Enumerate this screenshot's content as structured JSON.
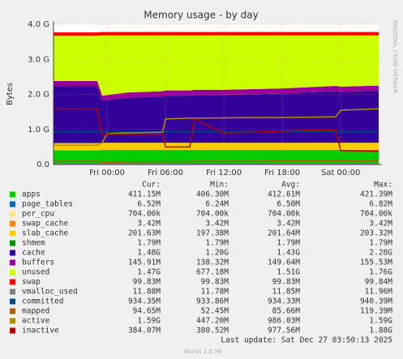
{
  "chart_data": {
    "type": "area",
    "title": "Memory usage - by day",
    "ylabel": "Bytes",
    "side_label": "RRDTOOL / TOBI OETIKER",
    "footer": "Last update: Sat Dec 27 03:50:13 2025",
    "version": "Munin 2.0.76",
    "columns": [
      "Cur:",
      "Min:",
      "Avg:",
      "Max:"
    ],
    "grid": true,
    "xlim": [
      -5.5,
      27.9
    ],
    "xticks": [
      {
        "value": 0,
        "label": "Fri 00:00"
      },
      {
        "value": 6,
        "label": "Fri 06:00"
      },
      {
        "value": 12,
        "label": "Fri 12:00"
      },
      {
        "value": 18,
        "label": "Fri 18:00"
      },
      {
        "value": 24,
        "label": "Sat 00:00"
      }
    ],
    "ylim": [
      0,
      4
    ],
    "yticks": [
      {
        "value": 0,
        "label": "0.0"
      },
      {
        "value": 1,
        "label": "1.0 G"
      },
      {
        "value": 2,
        "label": "2.0 G"
      },
      {
        "value": 3,
        "label": "3.0 G"
      },
      {
        "value": 4,
        "label": "4.0 G"
      }
    ],
    "x": [
      -5.5,
      -1,
      -0.5,
      0,
      2,
      5.7,
      6,
      8.5,
      9,
      12,
      15,
      18,
      21,
      23.5,
      24,
      27.9
    ],
    "series": [
      {
        "name": "apps",
        "color": "#00cc00",
        "style": "stack",
        "cur": "411.15M",
        "min": "406.30M",
        "avg": "412.61M",
        "max": "421.39M",
        "values": [
          0.4,
          0.4,
          0.41,
          0.41,
          0.41,
          0.41,
          0.41,
          0.41,
          0.41,
          0.41,
          0.41,
          0.41,
          0.41,
          0.41,
          0.41,
          0.41
        ]
      },
      {
        "name": "page_tables",
        "color": "#0066b3",
        "style": "stack",
        "cur": "6.52M",
        "min": "6.24M",
        "avg": "6.50M",
        "max": "6.82M",
        "values": [
          0.006,
          0.006,
          0.006,
          0.006,
          0.006,
          0.006,
          0.006,
          0.006,
          0.006,
          0.006,
          0.006,
          0.006,
          0.006,
          0.006,
          0.006,
          0.006
        ]
      },
      {
        "name": "per_cpu",
        "color": "#ffe680",
        "style": "stack",
        "cur": "704.00k",
        "min": "704.00k",
        "avg": "704.00k",
        "max": "704.00k",
        "values": [
          0.0007,
          0.0007,
          0.0007,
          0.0007,
          0.0007,
          0.0007,
          0.0007,
          0.0007,
          0.0007,
          0.0007,
          0.0007,
          0.0007,
          0.0007,
          0.0007,
          0.0007,
          0.0007
        ]
      },
      {
        "name": "swap_cache",
        "color": "#ff8000",
        "style": "stack",
        "cur": "3.42M",
        "min": "3.42M",
        "avg": "3.42M",
        "max": "3.42M",
        "values": [
          0.003,
          0.003,
          0.003,
          0.003,
          0.003,
          0.003,
          0.003,
          0.003,
          0.003,
          0.003,
          0.003,
          0.003,
          0.003,
          0.003,
          0.003,
          0.003
        ]
      },
      {
        "name": "slab_cache",
        "color": "#ffcc00",
        "style": "stack",
        "cur": "201.63M",
        "min": "197.38M",
        "avg": "201.64M",
        "max": "203.32M",
        "values": [
          0.2,
          0.2,
          0.2,
          0.2,
          0.2,
          0.2,
          0.2,
          0.2,
          0.2,
          0.2,
          0.2,
          0.2,
          0.2,
          0.2,
          0.2,
          0.2
        ]
      },
      {
        "name": "shmem",
        "color": "#008f00",
        "style": "stack",
        "cur": "1.79M",
        "min": "1.79M",
        "avg": "1.79M",
        "max": "1.79M",
        "values": [
          0.002,
          0.002,
          0.002,
          0.002,
          0.002,
          0.002,
          0.002,
          0.002,
          0.002,
          0.002,
          0.002,
          0.002,
          0.002,
          0.002,
          0.002,
          0.002
        ]
      },
      {
        "name": "cache",
        "color": "#330099",
        "style": "stack",
        "cur": "1.48G",
        "min": "1.20G",
        "avg": "1.43G",
        "max": "2.28G",
        "values": [
          1.62,
          1.62,
          1.2,
          1.22,
          1.28,
          1.32,
          1.34,
          1.34,
          1.36,
          1.36,
          1.38,
          1.4,
          1.44,
          1.47,
          1.45,
          1.48
        ]
      },
      {
        "name": "buffers",
        "color": "#990099",
        "style": "stack",
        "cur": "145.91M",
        "min": "138.32M",
        "avg": "149.64M",
        "max": "155.53M",
        "values": [
          0.15,
          0.15,
          0.14,
          0.14,
          0.15,
          0.15,
          0.15,
          0.15,
          0.15,
          0.15,
          0.15,
          0.15,
          0.15,
          0.15,
          0.15,
          0.15
        ]
      },
      {
        "name": "unused",
        "color": "#ccff00",
        "style": "stack",
        "cur": "1.47G",
        "min": "677.18M",
        "avg": "1.51G",
        "max": "1.76G",
        "values": [
          1.29,
          1.29,
          1.72,
          1.7,
          1.63,
          1.59,
          1.57,
          1.57,
          1.55,
          1.55,
          1.53,
          1.51,
          1.47,
          1.44,
          1.46,
          1.43
        ]
      },
      {
        "name": "swap",
        "color": "#ff0000",
        "style": "stack",
        "cur": "99.83M",
        "min": "99.83M",
        "avg": "99.83M",
        "max": "99.84M",
        "values": [
          0.1,
          0.1,
          0.1,
          0.1,
          0.1,
          0.1,
          0.1,
          0.1,
          0.1,
          0.1,
          0.1,
          0.1,
          0.1,
          0.1,
          0.1,
          0.1
        ]
      },
      {
        "name": "vmalloc_used",
        "color": "#808080",
        "style": "line",
        "cur": "11.88M",
        "min": "11.78M",
        "avg": "11.85M",
        "max": "11.96M",
        "values": [
          0.012,
          0.012,
          0.012,
          0.012,
          0.012,
          0.012,
          0.012,
          0.012,
          0.012,
          0.012,
          0.012,
          0.012,
          0.012,
          0.012,
          0.012,
          0.012
        ]
      },
      {
        "name": "committed",
        "color": "#00487d",
        "style": "line",
        "cur": "934.35M",
        "min": "933.86M",
        "avg": "934.33M",
        "max": "940.39M",
        "values": [
          0.93,
          0.93,
          0.93,
          0.93,
          0.93,
          0.93,
          0.93,
          0.93,
          0.93,
          0.93,
          0.93,
          0.93,
          0.93,
          0.93,
          0.93,
          0.93
        ]
      },
      {
        "name": "mapped",
        "color": "#b35a00",
        "style": "line",
        "cur": "94.65M",
        "min": "52.45M",
        "avg": "85.66M",
        "max": "119.39M",
        "values": [
          0.09,
          0.09,
          0.06,
          0.06,
          0.07,
          0.08,
          0.08,
          0.08,
          0.09,
          0.09,
          0.09,
          0.1,
          0.1,
          0.1,
          0.1,
          0.095
        ]
      },
      {
        "name": "active",
        "color": "#b38f00",
        "style": "line",
        "cur": "1.59G",
        "min": "447.20M",
        "avg": "986.03M",
        "max": "1.59G",
        "values": [
          0.55,
          0.55,
          0.62,
          0.88,
          0.9,
          0.92,
          1.3,
          1.32,
          1.32,
          1.33,
          1.34,
          1.34,
          1.35,
          1.36,
          1.55,
          1.59
        ]
      },
      {
        "name": "inactive",
        "color": "#b30000",
        "style": "line",
        "cur": "384.07M",
        "min": "380.52M",
        "avg": "977.56M",
        "max": "1.88G",
        "values": [
          1.6,
          1.6,
          0.85,
          0.86,
          0.86,
          0.86,
          0.5,
          0.5,
          1.3,
          0.9,
          0.92,
          0.95,
          0.98,
          0.98,
          0.4,
          0.38
        ]
      }
    ]
  }
}
